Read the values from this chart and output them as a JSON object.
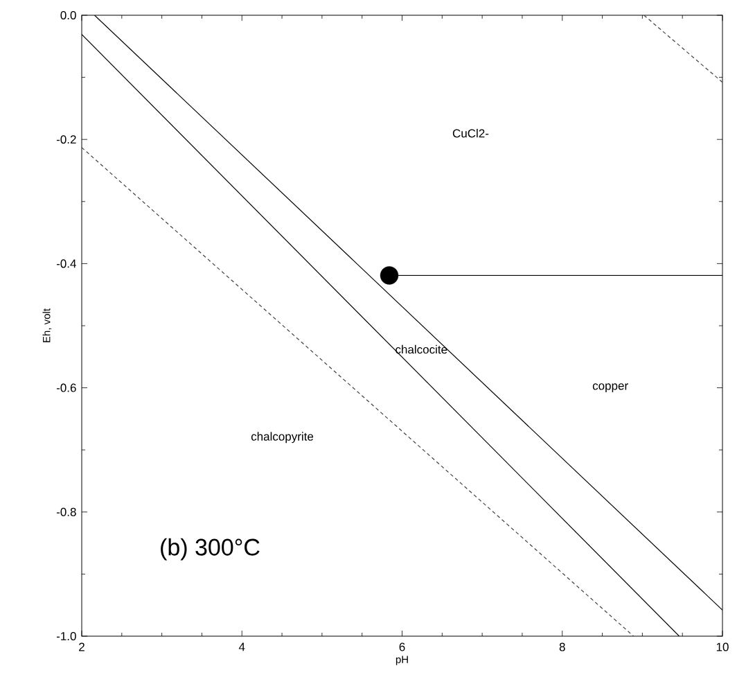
{
  "chart_data": {
    "type": "line",
    "xlabel": "pH",
    "ylabel": "Eh, volt",
    "xlim": [
      2,
      10
    ],
    "ylim": [
      -1.0,
      0.0
    ],
    "xticks": [
      2,
      4,
      6,
      8,
      10
    ],
    "yticks": [
      {
        "value": -1.0,
        "label": "-1.0"
      },
      -0.8,
      -0.6,
      -0.4,
      -0.2,
      {
        "value": 0.0,
        "label": "0.0"
      }
    ],
    "grid": false,
    "marker": "none",
    "series": [
      {
        "color": "#000000",
        "line_style": "solid",
        "x": [
          2.16,
          10
        ],
        "values": [
          0.0,
          -0.958
        ]
      },
      {
        "color": "#000000",
        "line_style": "solid",
        "x": [
          2,
          9.46
        ],
        "values": [
          -0.031,
          -1.0
        ]
      },
      {
        "color": "#000000",
        "line_style": "solid",
        "x": [
          5.84,
          10
        ],
        "values": [
          -0.419,
          -0.419
        ]
      },
      {
        "color": "#404040",
        "line_style": "dashed",
        "x": [
          2,
          8.89
        ],
        "values": [
          -0.213,
          -1.0
        ]
      },
      {
        "color": "#404040",
        "line_style": "dashed",
        "x": [
          9.02,
          10
        ],
        "values": [
          0.0,
          -0.108
        ]
      },
      {
        "type": "scatter",
        "color": "#000000",
        "x": [
          5.84
        ],
        "values": [
          -0.419
        ]
      }
    ],
    "annotations": [
      "CuCl2-",
      "chalcocite",
      "copper",
      "chalcopyrite",
      "(b) 300°C"
    ]
  }
}
